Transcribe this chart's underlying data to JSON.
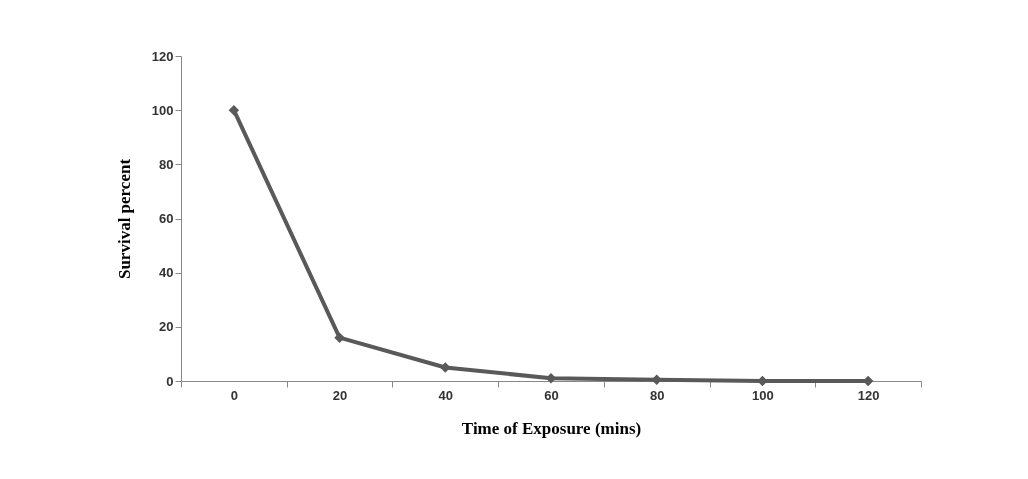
{
  "chart_data": {
    "type": "line",
    "xlabel": "Time of Exposure (mins)",
    "ylabel": "Survival percent",
    "categories": [
      "0",
      "20",
      "40",
      "60",
      "80",
      "100",
      "120"
    ],
    "series": [
      {
        "color": "#595959",
        "values": [
          100,
          16,
          5,
          1,
          0.5,
          0,
          0
        ]
      }
    ],
    "ylim": [
      0,
      120
    ],
    "yticks": [
      0,
      20,
      40,
      60,
      80,
      100,
      120
    ],
    "grid": false,
    "marker": "diamond",
    "line_style": "solid"
  }
}
